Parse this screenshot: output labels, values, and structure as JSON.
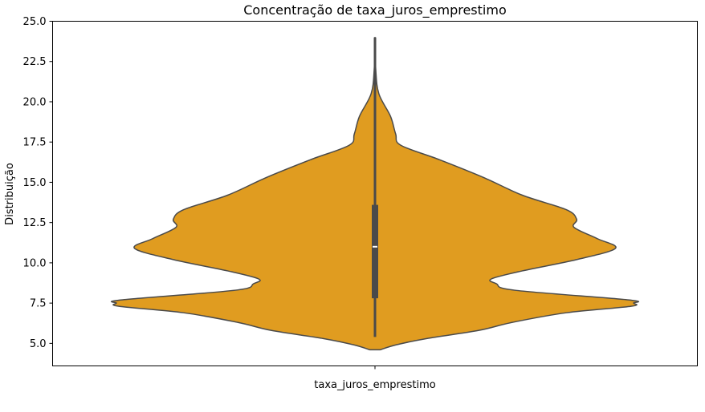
{
  "chart_data": {
    "type": "violin",
    "title": "Concentração de taxa_juros_emprestimo",
    "xlabel": "",
    "ylabel": "Distribuição",
    "categories": [
      "taxa_juros_emprestimo"
    ],
    "ylim": [
      3.6,
      25.0
    ],
    "y_ticks": [
      "5.0",
      "7.5",
      "10.0",
      "12.5",
      "15.0",
      "17.5",
      "20.0",
      "22.5",
      "25.0"
    ],
    "grid": false,
    "fill_color": "#e09c20",
    "edge_color": "#4a4a4a",
    "box": {
      "min": 5.4,
      "q1": 7.8,
      "median": 11.0,
      "q3": 13.6,
      "max": 24.0
    },
    "density_profile": [
      {
        "y": 4.6,
        "w": 0.02
      },
      {
        "y": 4.9,
        "w": 0.08
      },
      {
        "y": 5.3,
        "w": 0.2
      },
      {
        "y": 5.8,
        "w": 0.4
      },
      {
        "y": 6.3,
        "w": 0.53
      },
      {
        "y": 6.9,
        "w": 0.74
      },
      {
        "y": 7.3,
        "w": 0.99
      },
      {
        "y": 7.5,
        "w": 1.0
      },
      {
        "y": 7.7,
        "w": 0.98
      },
      {
        "y": 8.3,
        "w": 0.54
      },
      {
        "y": 8.7,
        "w": 0.47
      },
      {
        "y": 9.0,
        "w": 0.45
      },
      {
        "y": 9.5,
        "w": 0.57
      },
      {
        "y": 10.2,
        "w": 0.78
      },
      {
        "y": 10.9,
        "w": 0.93
      },
      {
        "y": 11.5,
        "w": 0.86
      },
      {
        "y": 12.2,
        "w": 0.77
      },
      {
        "y": 12.7,
        "w": 0.78
      },
      {
        "y": 13.3,
        "w": 0.74
      },
      {
        "y": 14.2,
        "w": 0.57
      },
      {
        "y": 15.3,
        "w": 0.42
      },
      {
        "y": 16.4,
        "w": 0.25
      },
      {
        "y": 17.3,
        "w": 0.1
      },
      {
        "y": 18.0,
        "w": 0.08
      },
      {
        "y": 19.1,
        "w": 0.06
      },
      {
        "y": 20.5,
        "w": 0.015
      },
      {
        "y": 22.0,
        "w": 0.003
      },
      {
        "y": 24.0,
        "w": 0.0
      }
    ]
  }
}
